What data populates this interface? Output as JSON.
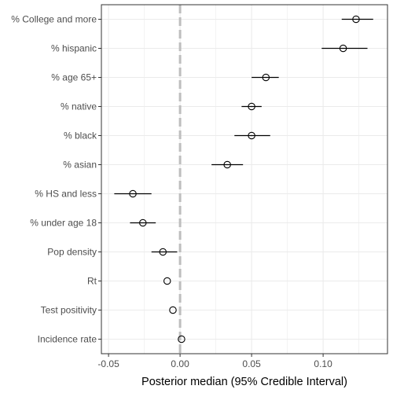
{
  "chart_data": {
    "type": "forest",
    "xlabel": "Posterior median (95% Credible Interval)",
    "ylabel": "",
    "xlim": [
      -0.055,
      0.145
    ],
    "x_ticks": [
      -0.05,
      0.0,
      0.05,
      0.1
    ],
    "x_tick_labels": [
      "-0.05",
      "0.00",
      "0.05",
      "0.10"
    ],
    "reference_line": 0,
    "grid": true,
    "legend": "none",
    "colors": {
      "panel_border": "#333333",
      "grid": "#ebebeb",
      "reference_line": "#bebebe",
      "point": "#000000",
      "tick_label": "#4d4d4d"
    },
    "categories": [
      "% College and more",
      "% hispanic",
      "% age 65+",
      "% native",
      "% black",
      "% asian",
      "% HS and less",
      "% under age 18",
      "Pop density",
      "Rt",
      "Test positivity",
      "Incidence rate"
    ],
    "median": [
      0.123,
      0.114,
      0.06,
      0.05,
      0.05,
      0.033,
      -0.033,
      -0.026,
      -0.012,
      -0.009,
      -0.005,
      0.001
    ],
    "lower": [
      0.113,
      0.099,
      0.05,
      0.043,
      0.038,
      0.022,
      -0.046,
      -0.035,
      -0.02,
      -0.009,
      -0.005,
      0.001
    ],
    "upper": [
      0.135,
      0.131,
      0.069,
      0.057,
      0.063,
      0.044,
      -0.02,
      -0.017,
      -0.002,
      -0.009,
      -0.005,
      0.001
    ]
  }
}
